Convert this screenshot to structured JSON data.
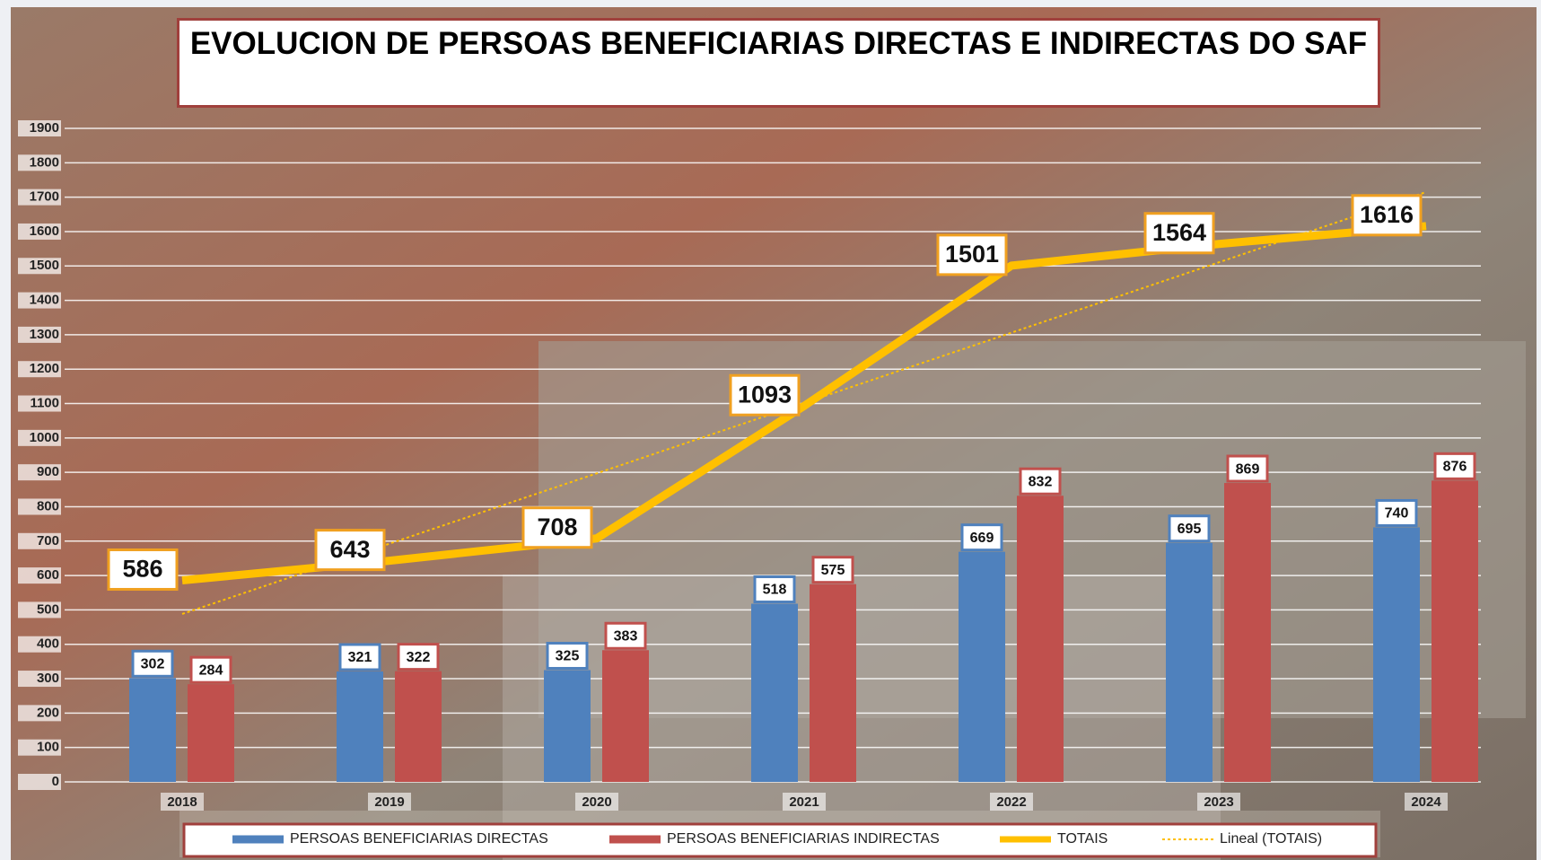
{
  "chart_data": {
    "type": "bar",
    "title": "EVOLUCION DE PERSOAS BENEFICIARIAS DIRECTAS E INDIRECTAS DO SAF",
    "categories": [
      "2018",
      "2019",
      "2020",
      "2021",
      "2022",
      "2023",
      "2024"
    ],
    "series": [
      {
        "name": "PERSOAS BENEFICIARIAS DIRECTAS",
        "type": "bar",
        "color": "#4f81bd",
        "values": [
          302,
          321,
          325,
          518,
          669,
          695,
          740
        ]
      },
      {
        "name": "PERSOAS BENEFICIARIAS INDIRECTAS",
        "type": "bar",
        "color": "#c0504d",
        "values": [
          284,
          322,
          383,
          575,
          832,
          869,
          876
        ]
      },
      {
        "name": "TOTAIS",
        "type": "line",
        "color": "#ffc000",
        "values": [
          586,
          643,
          708,
          1093,
          1501,
          1564,
          1616
        ]
      }
    ],
    "trendline": {
      "name": "Lineal (TOTAIS)",
      "color": "#ffc000"
    },
    "ylim": [
      0,
      1900
    ],
    "yticks": [
      0,
      100,
      200,
      300,
      400,
      500,
      600,
      700,
      800,
      900,
      1000,
      1100,
      1200,
      1300,
      1400,
      1500,
      1600,
      1700,
      1800,
      1900
    ],
    "grid": true
  }
}
